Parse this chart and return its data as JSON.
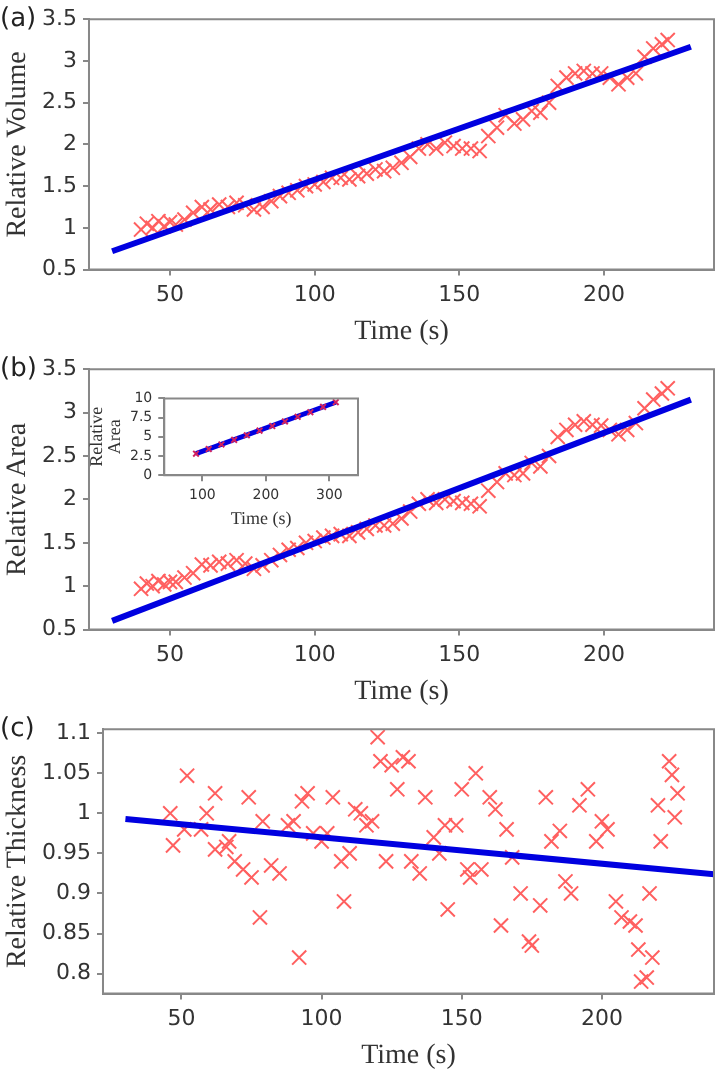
{
  "chart_data": [
    {
      "type": "scatter",
      "title": "(a)",
      "xlabel": "Time (s)",
      "ylabel": "Relative Volume",
      "xlim": [
        22,
        238
      ],
      "xticks": [
        50,
        100,
        150,
        200
      ],
      "ylim": [
        0.5,
        3.5
      ],
      "yticks": [
        0.5,
        1,
        1.5,
        2,
        2.5,
        3,
        3.5
      ],
      "marker": "cross",
      "grid": false,
      "series": [
        {
          "type": "scatter",
          "color": "#ff6060",
          "x": [
            40,
            42,
            44,
            46,
            48,
            50,
            52,
            55,
            58,
            61,
            64,
            67,
            70,
            73,
            76,
            79,
            82,
            85,
            88,
            91,
            94,
            97,
            100,
            103,
            106,
            109,
            112,
            115,
            118,
            121,
            124,
            127,
            130,
            133,
            136,
            139,
            142,
            145,
            148,
            151,
            154,
            157,
            160,
            163,
            166,
            169,
            172,
            175,
            178,
            181,
            184,
            187,
            190,
            193,
            196,
            199,
            202,
            205,
            208,
            211,
            214,
            217,
            220,
            222
          ],
          "values": [
            0.98,
            1.05,
            1.0,
            1.08,
            1.02,
            1.07,
            1.04,
            1.1,
            1.18,
            1.25,
            1.22,
            1.28,
            1.25,
            1.3,
            1.27,
            1.22,
            1.25,
            1.32,
            1.38,
            1.42,
            1.45,
            1.5,
            1.52,
            1.55,
            1.6,
            1.6,
            1.58,
            1.62,
            1.65,
            1.7,
            1.68,
            1.72,
            1.78,
            1.85,
            1.95,
            2.0,
            1.95,
            2.02,
            1.98,
            1.95,
            1.95,
            1.92,
            2.1,
            2.2,
            2.35,
            2.25,
            2.3,
            2.4,
            2.38,
            2.5,
            2.7,
            2.8,
            2.85,
            2.88,
            2.85,
            2.85,
            2.8,
            2.72,
            2.8,
            2.85,
            3.05,
            3.15,
            3.2,
            3.25
          ]
        },
        {
          "type": "line",
          "marker": "none",
          "color": "#0000e0",
          "x": [
            30,
            230
          ],
          "values": [
            0.72,
            3.17
          ]
        }
      ]
    },
    {
      "type": "scatter",
      "title": "(b)",
      "xlabel": "Time (s)",
      "ylabel": "Relative Area",
      "xlim": [
        22,
        238
      ],
      "xticks": [
        50,
        100,
        150,
        200
      ],
      "ylim": [
        0.5,
        3.5
      ],
      "yticks": [
        0.5,
        1,
        1.5,
        2,
        2.5,
        3,
        3.5
      ],
      "marker": "cross",
      "grid": false,
      "series": [
        {
          "type": "scatter",
          "color": "#ff6060",
          "x": [
            40,
            42,
            44,
            46,
            48,
            50,
            52,
            55,
            58,
            61,
            64,
            67,
            70,
            73,
            76,
            79,
            82,
            85,
            88,
            91,
            94,
            97,
            100,
            103,
            106,
            109,
            112,
            115,
            118,
            121,
            124,
            127,
            130,
            133,
            136,
            139,
            142,
            145,
            148,
            151,
            154,
            157,
            160,
            163,
            166,
            169,
            172,
            175,
            178,
            181,
            184,
            187,
            190,
            193,
            196,
            199,
            202,
            205,
            208,
            211,
            214,
            217,
            220,
            222
          ],
          "values": [
            0.97,
            1.03,
            1.0,
            1.06,
            1.02,
            1.05,
            1.05,
            1.1,
            1.15,
            1.25,
            1.24,
            1.28,
            1.26,
            1.3,
            1.26,
            1.2,
            1.24,
            1.3,
            1.36,
            1.42,
            1.44,
            1.5,
            1.52,
            1.56,
            1.58,
            1.6,
            1.58,
            1.62,
            1.66,
            1.7,
            1.7,
            1.72,
            1.78,
            1.86,
            1.95,
            2.0,
            1.96,
            2.0,
            1.98,
            1.96,
            1.95,
            1.92,
            2.1,
            2.2,
            2.3,
            2.28,
            2.3,
            2.42,
            2.38,
            2.5,
            2.72,
            2.8,
            2.86,
            2.9,
            2.86,
            2.85,
            2.8,
            2.75,
            2.8,
            2.88,
            3.05,
            3.15,
            3.22,
            3.28
          ]
        },
        {
          "type": "line",
          "marker": "none",
          "color": "#0000e0",
          "x": [
            30,
            230
          ],
          "values": [
            0.6,
            3.15
          ]
        }
      ]
    },
    {
      "type": "scatter",
      "xlabel": "Time (s)",
      "ylabel": "Relative\nArea",
      "xlim": [
        40,
        345
      ],
      "xticks": [
        100,
        200,
        300
      ],
      "ylim": [
        0,
        10
      ],
      "yticks": [
        0,
        2.5,
        5,
        7.5,
        10
      ],
      "marker": "cross",
      "grid": false,
      "series": [
        {
          "type": "line",
          "marker": "none",
          "color": "#0000e0",
          "x": [
            90,
            310
          ],
          "values": [
            2.8,
            9.5
          ]
        },
        {
          "type": "scatter",
          "color": "#d02060",
          "x": [
            90,
            110,
            130,
            150,
            170,
            190,
            210,
            230,
            250,
            270,
            290,
            310
          ],
          "values": [
            2.8,
            3.4,
            4.0,
            4.6,
            5.2,
            5.8,
            6.4,
            7.0,
            7.6,
            8.2,
            8.9,
            9.5
          ]
        }
      ]
    },
    {
      "type": "scatter",
      "title": "(c)",
      "xlabel": "Time (s)",
      "ylabel": "Relative Thickness",
      "xlim": [
        22,
        240
      ],
      "xticks": [
        50,
        100,
        150,
        200
      ],
      "ylim": [
        0.775,
        1.105
      ],
      "yticks": [
        0.8,
        0.85,
        0.9,
        0.95,
        1,
        1.05,
        1.1
      ],
      "marker": "cross",
      "grid": false,
      "series": [
        {
          "type": "scatter",
          "color": "#ff6060",
          "x": [
            46,
            47,
            52,
            51,
            57,
            59,
            62,
            62,
            66,
            67,
            69,
            72,
            74,
            75,
            78,
            79,
            82,
            85,
            88,
            90,
            92,
            93,
            95,
            97,
            100,
            102,
            104,
            107,
            108,
            110,
            112,
            114,
            116,
            118,
            120,
            121,
            123,
            125,
            127,
            129,
            131,
            132,
            135,
            137,
            140,
            142,
            144,
            145,
            148,
            150,
            152,
            153,
            155,
            157,
            160,
            162,
            164,
            166,
            168,
            171,
            174,
            175,
            178,
            180,
            182,
            185,
            187,
            189,
            192,
            195,
            198,
            200,
            202,
            205,
            207,
            210,
            212,
            213,
            214,
            216,
            217,
            218,
            220,
            221,
            224,
            225,
            226,
            227
          ],
          "values": [
            1.0,
            0.96,
            1.047,
            0.98,
            0.98,
            1.0,
            1.025,
            0.955,
            0.958,
            0.965,
            0.94,
            0.93,
            1.02,
            0.92,
            0.87,
            0.99,
            0.935,
            0.925,
            0.985,
            0.99,
            0.82,
            1.015,
            1.025,
            0.975,
            0.965,
            0.975,
            1.02,
            0.94,
            0.89,
            0.95,
            1.005,
            1.0,
            0.985,
            0.99,
            1.095,
            1.065,
            0.94,
            1.06,
            1.03,
            1.07,
            1.065,
            0.94,
            0.925,
            1.02,
            0.97,
            0.95,
            0.985,
            0.88,
            0.985,
            1.03,
            0.93,
            0.92,
            1.05,
            0.93,
            1.02,
            1.005,
            0.86,
            0.98,
            0.945,
            0.9,
            0.84,
            0.835,
            0.885,
            1.02,
            0.965,
            0.978,
            0.915,
            0.9,
            1.01,
            1.03,
            0.965,
            0.99,
            0.98,
            0.89,
            0.87,
            0.865,
            0.86,
            0.83,
            0.79,
            0.795,
            0.9,
            0.82,
            1.01,
            0.965,
            1.065,
            1.048,
            0.995,
            1.025
          ]
        },
        {
          "type": "line",
          "marker": "none",
          "color": "#0000e0",
          "x": [
            30,
            240
          ],
          "values": [
            0.993,
            0.924
          ]
        }
      ]
    }
  ]
}
